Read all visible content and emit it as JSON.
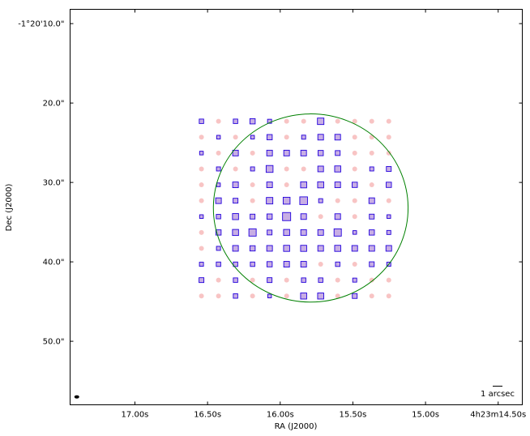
{
  "chart_data": {
    "type": "scatter",
    "title": "",
    "xlabel": "RA (J2000)",
    "ylabel": "Dec (J2000)",
    "x_ticks": [
      {
        "value": 17.0,
        "label": "17.00s"
      },
      {
        "value": 16.5,
        "label": "16.50s"
      },
      {
        "value": 16.0,
        "label": "16.00s"
      },
      {
        "value": 15.5,
        "label": "15.50s"
      },
      {
        "value": 15.0,
        "label": "15.00s"
      },
      {
        "value": 14.5,
        "label": "4h23m14.50s"
      }
    ],
    "y_ticks": [
      {
        "value": 10.0,
        "label": "-1°20'10.0\""
      },
      {
        "value": 20.0,
        "label": "20.0\""
      },
      {
        "value": 30.0,
        "label": "30.0\""
      },
      {
        "value": 40.0,
        "label": "40.0\""
      },
      {
        "value": 50.0,
        "label": "50.0\""
      }
    ],
    "xlim": [
      17.446,
      14.334
    ],
    "ylim": [
      58.0,
      8.2
    ],
    "grid": {
      "ra_start": 16.542,
      "ra_step": -0.1172,
      "dec_start": 22.3,
      "dec_step": 2.0,
      "rows": 12,
      "cols": 12
    },
    "dot_color": "#f8c4c4",
    "square_color": "#2200dd",
    "square_fill": "#c8aee4",
    "squares": [
      [
        0,
        0,
        5.5
      ],
      [
        2,
        0,
        5.5
      ],
      [
        3,
        0,
        6.5
      ],
      [
        4,
        0,
        5
      ],
      [
        7,
        0,
        8
      ],
      [
        1,
        1,
        4.5
      ],
      [
        3,
        1,
        4.5
      ],
      [
        4,
        1,
        6.5
      ],
      [
        6,
        1,
        5
      ],
      [
        7,
        1,
        7
      ],
      [
        8,
        1,
        7
      ],
      [
        0,
        2,
        4.5
      ],
      [
        2,
        2,
        7
      ],
      [
        4,
        2,
        7
      ],
      [
        5,
        2,
        7
      ],
      [
        6,
        2,
        7
      ],
      [
        7,
        2,
        6.5
      ],
      [
        8,
        2,
        6
      ],
      [
        1,
        3,
        5
      ],
      [
        3,
        3,
        5
      ],
      [
        4,
        3,
        8.5
      ],
      [
        7,
        3,
        7
      ],
      [
        8,
        3,
        7.5
      ],
      [
        10,
        3,
        5
      ],
      [
        11,
        3,
        6
      ],
      [
        1,
        4,
        4.5
      ],
      [
        2,
        4,
        7
      ],
      [
        4,
        4,
        7
      ],
      [
        6,
        4,
        7.5
      ],
      [
        7,
        4,
        7.5
      ],
      [
        8,
        4,
        7
      ],
      [
        9,
        4,
        6.5
      ],
      [
        11,
        4,
        6.5
      ],
      [
        1,
        5,
        7
      ],
      [
        2,
        5,
        6
      ],
      [
        4,
        5,
        8
      ],
      [
        5,
        5,
        8.5
      ],
      [
        6,
        5,
        9.5
      ],
      [
        7,
        5,
        5
      ],
      [
        10,
        5,
        7
      ],
      [
        0,
        6,
        4.5
      ],
      [
        1,
        6,
        5.5
      ],
      [
        2,
        6,
        7.5
      ],
      [
        3,
        6,
        6
      ],
      [
        4,
        6,
        6.5
      ],
      [
        5,
        6,
        10
      ],
      [
        6,
        6,
        7
      ],
      [
        8,
        6,
        7
      ],
      [
        10,
        6,
        6
      ],
      [
        11,
        6,
        4.5
      ],
      [
        1,
        7,
        6.5
      ],
      [
        2,
        7,
        7.5
      ],
      [
        3,
        7,
        9
      ],
      [
        4,
        7,
        6
      ],
      [
        5,
        7,
        7.5
      ],
      [
        6,
        7,
        7
      ],
      [
        7,
        7,
        7
      ],
      [
        8,
        7,
        9
      ],
      [
        9,
        7,
        4.5
      ],
      [
        10,
        7,
        6.5
      ],
      [
        11,
        7,
        5
      ],
      [
        1,
        8,
        5
      ],
      [
        2,
        8,
        7
      ],
      [
        3,
        8,
        6.5
      ],
      [
        4,
        8,
        7
      ],
      [
        5,
        8,
        7.5
      ],
      [
        6,
        8,
        7.5
      ],
      [
        7,
        8,
        7
      ],
      [
        8,
        8,
        7.5
      ],
      [
        9,
        8,
        7
      ],
      [
        10,
        8,
        7
      ],
      [
        11,
        8,
        7
      ],
      [
        0,
        9,
        5
      ],
      [
        1,
        9,
        5.5
      ],
      [
        2,
        9,
        5.5
      ],
      [
        3,
        9,
        5.5
      ],
      [
        4,
        9,
        6.5
      ],
      [
        5,
        9,
        7
      ],
      [
        6,
        9,
        7
      ],
      [
        8,
        9,
        5.5
      ],
      [
        10,
        9,
        6
      ],
      [
        11,
        9,
        5
      ],
      [
        0,
        10,
        6
      ],
      [
        2,
        10,
        5.5
      ],
      [
        4,
        10,
        6
      ],
      [
        6,
        10,
        5.5
      ],
      [
        7,
        10,
        5.5
      ],
      [
        9,
        10,
        5
      ],
      [
        2,
        11,
        5.5
      ],
      [
        4,
        11,
        4.5
      ],
      [
        6,
        11,
        7.5
      ],
      [
        7,
        11,
        7.5
      ],
      [
        9,
        11,
        6
      ]
    ],
    "ellipse": {
      "center_ra": 15.79,
      "center_dec": 33.22,
      "semi_ra": 0.67,
      "semi_dec": 11.85,
      "color": "#008000"
    },
    "beam": {
      "ra": 17.4,
      "dec": 57.0
    },
    "scalebar": {
      "label": "1 arcsec"
    }
  }
}
